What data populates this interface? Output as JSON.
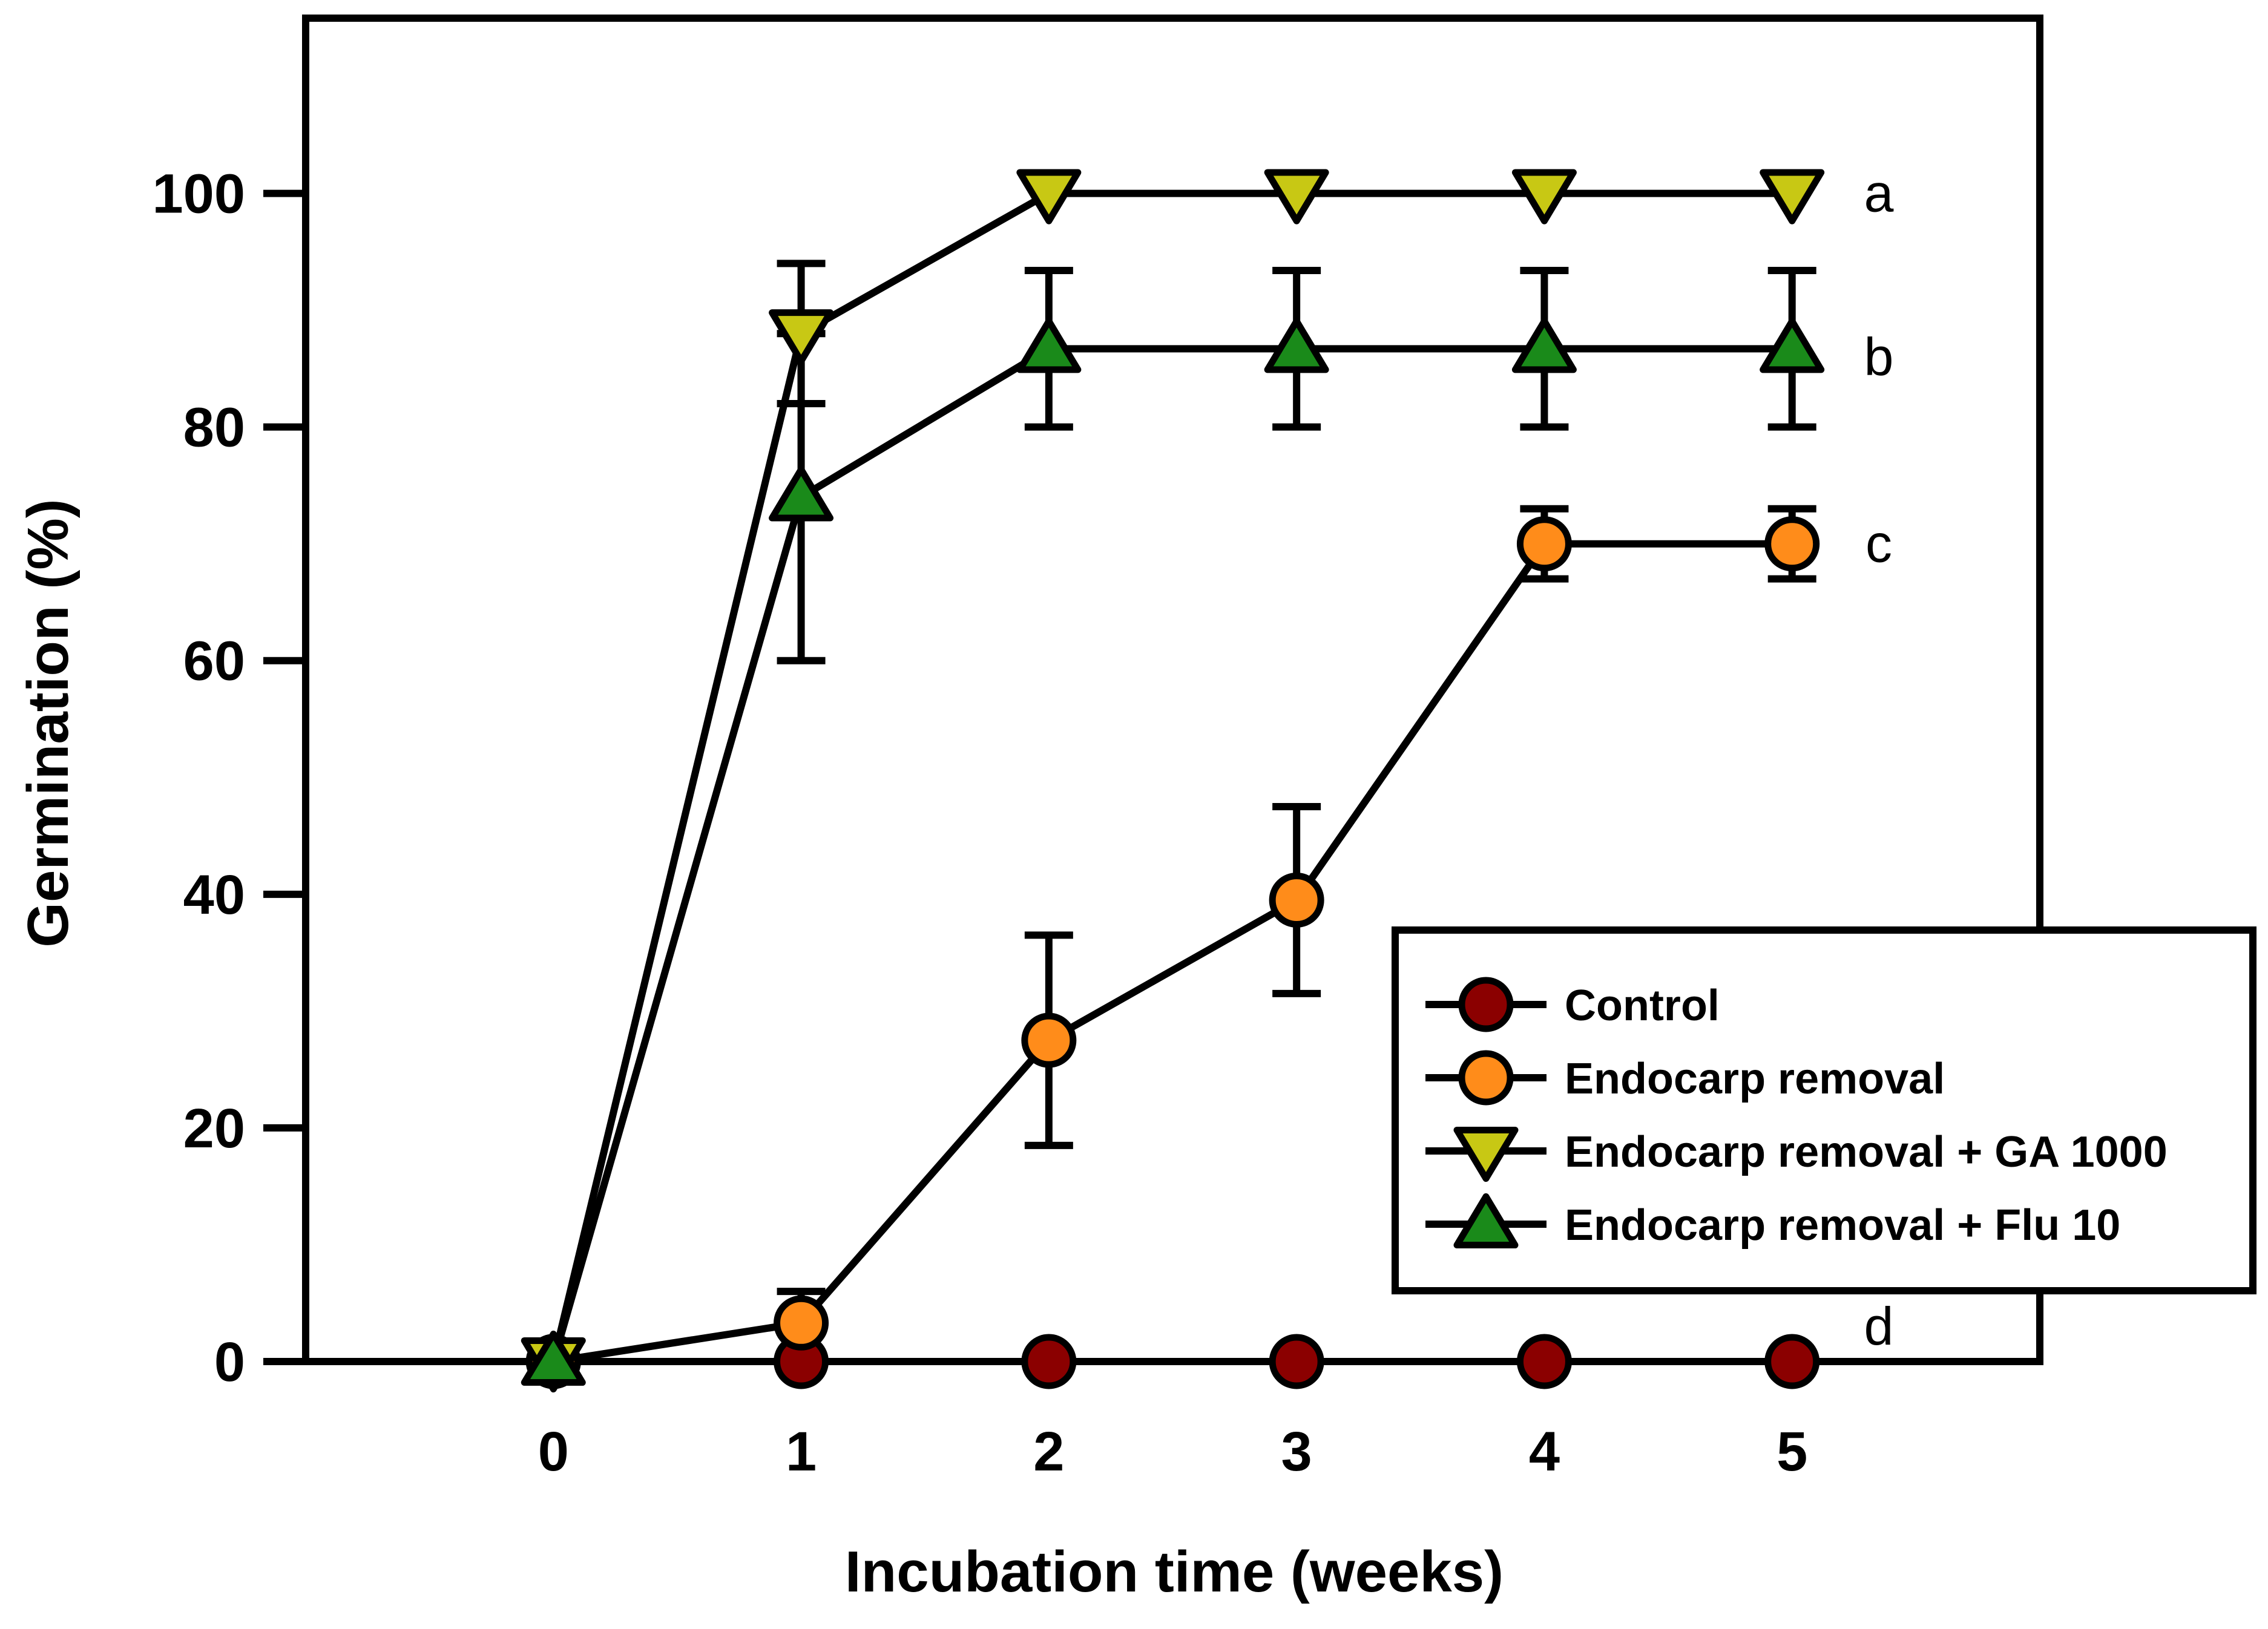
{
  "chart_data": {
    "type": "line",
    "title": "",
    "xlabel": "Incubation time (weeks)",
    "ylabel": "Germination (%)",
    "xlim": [
      -1,
      6
    ],
    "ylim": [
      0,
      115
    ],
    "x_ticks": [
      0,
      1,
      2,
      3,
      4,
      5
    ],
    "x_tick_labels": [
      "0",
      "1",
      "2",
      "3",
      "4",
      "5"
    ],
    "y_ticks": [
      0,
      20,
      40,
      60,
      80,
      100
    ],
    "y_tick_labels": [
      "0",
      "20",
      "40",
      "60",
      "80",
      "100"
    ],
    "grid": false,
    "legend_position": "bottom-right",
    "series": [
      {
        "name": "Control",
        "marker": "circle",
        "color": "#8b0000",
        "x": [
          0,
          1,
          2,
          3,
          4,
          5
        ],
        "values": [
          0,
          0,
          0,
          0,
          0,
          0
        ],
        "error": [
          0,
          0,
          0,
          0,
          0,
          0
        ]
      },
      {
        "name": "Endocarp removal",
        "marker": "circle",
        "color": "#ff8c1a",
        "x": [
          0,
          1,
          2,
          3,
          4,
          5
        ],
        "values": [
          0,
          3.3,
          27.5,
          39.5,
          70,
          70
        ],
        "error": [
          0,
          2.7,
          9,
          8,
          3,
          3
        ]
      },
      {
        "name": "Endocarp removal + GA 1000",
        "marker": "triangle-down",
        "color": "#c8c814",
        "x": [
          0,
          1,
          2,
          3,
          4,
          5
        ],
        "values": [
          0,
          88,
          100,
          100,
          100,
          100
        ],
        "error": [
          0,
          6,
          0,
          0,
          0,
          0
        ]
      },
      {
        "name": "Endocarp removal + Flu 10",
        "marker": "triangle-up",
        "color": "#1a8a1a",
        "x": [
          0,
          1,
          2,
          3,
          4,
          5
        ],
        "values": [
          0,
          74,
          86.7,
          86.7,
          86.7,
          86.7
        ],
        "error": [
          0,
          14,
          6.7,
          6.7,
          6.7,
          6.7
        ]
      }
    ],
    "annotations": [
      {
        "text": "a",
        "x": 5.35,
        "y": 100
      },
      {
        "text": "b",
        "x": 5.35,
        "y": 86
      },
      {
        "text": "c",
        "x": 5.35,
        "y": 70
      },
      {
        "text": "d",
        "x": 5.35,
        "y": 3
      }
    ]
  }
}
